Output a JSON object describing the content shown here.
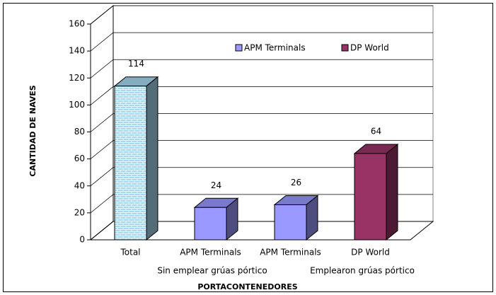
{
  "chart_data": {
    "type": "bar3d",
    "categories": [
      "Total",
      "APM Terminals",
      "APM Terminals",
      "DP World"
    ],
    "values": [
      114,
      24,
      26,
      64
    ],
    "colors": [
      "#a6d8f0",
      "#9999ff",
      "#9999ff",
      "#993366"
    ],
    "group_labels": [
      "Sin emplear grúas pórtico",
      "Emplearon grúas pórtico"
    ],
    "legend": [
      {
        "name": "APM Terminals",
        "color": "#9999ff"
      },
      {
        "name": "DP World",
        "color": "#993366"
      }
    ],
    "ylabel": "CANTIDAD DE NAVES",
    "xlabel": "PORTACONTENEDORES",
    "ylim": [
      0,
      160
    ],
    "yticks": [
      0,
      20,
      40,
      60,
      80,
      100,
      120,
      140,
      160
    ],
    "grid": true
  }
}
